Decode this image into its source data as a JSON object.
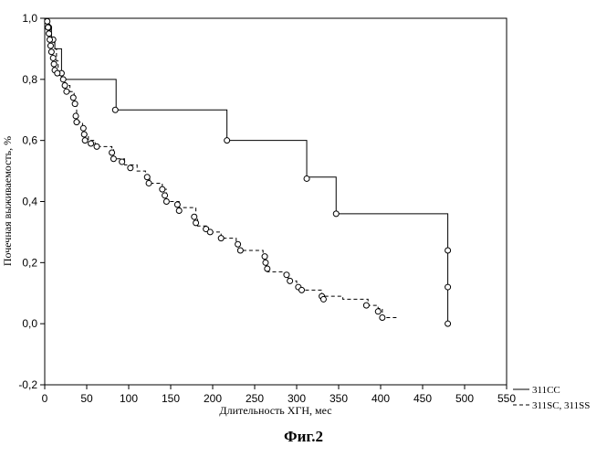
{
  "chart_data": {
    "type": "line",
    "caption": "Фиг.2",
    "xlabel": "Длительность ХГН, мес",
    "ylabel": "Почечная выживаемость, %",
    "xlim": [
      0,
      550
    ],
    "ylim": [
      -0.2,
      1.0
    ],
    "x_ticks": [
      0,
      50,
      100,
      150,
      200,
      250,
      300,
      350,
      400,
      450,
      500,
      550
    ],
    "y_ticks": [
      -0.2,
      0.0,
      0.2,
      0.4,
      0.6,
      0.8,
      1.0
    ],
    "y_tick_labels": [
      "-0,2",
      "0,0",
      "0,2",
      "0,4",
      "0,6",
      "0,8",
      "1,0"
    ],
    "grid": false,
    "legend_position": "bottom-right outside",
    "series": [
      {
        "name": "311CC",
        "style": "solid",
        "steps": [
          [
            2,
            1.0
          ],
          [
            5,
            0.97
          ],
          [
            8,
            0.93
          ],
          [
            12,
            0.9
          ],
          [
            20,
            0.8
          ],
          [
            85,
            0.7
          ],
          [
            217,
            0.6
          ],
          [
            312,
            0.48
          ],
          [
            347,
            0.36
          ],
          [
            480,
            0.24
          ],
          [
            480,
            0.12
          ],
          [
            480,
            0.0
          ]
        ],
        "markers": [
          [
            5,
            0.97
          ],
          [
            10,
            0.93
          ],
          [
            20,
            0.82
          ],
          [
            84,
            0.7
          ],
          [
            217,
            0.6
          ],
          [
            312,
            0.475
          ],
          [
            347,
            0.36
          ],
          [
            480,
            0.24
          ],
          [
            480,
            0.12
          ],
          [
            480,
            0.0
          ]
        ]
      },
      {
        "name": "311SC, 311SS",
        "style": "dashed",
        "steps": [
          [
            2,
            1.0
          ],
          [
            4,
            0.98
          ],
          [
            6,
            0.96
          ],
          [
            8,
            0.94
          ],
          [
            10,
            0.92
          ],
          [
            12,
            0.9
          ],
          [
            14,
            0.86
          ],
          [
            16,
            0.82
          ],
          [
            20,
            0.8
          ],
          [
            25,
            0.78
          ],
          [
            30,
            0.76
          ],
          [
            35,
            0.72
          ],
          [
            38,
            0.66
          ],
          [
            45,
            0.64
          ],
          [
            48,
            0.62
          ],
          [
            52,
            0.6
          ],
          [
            60,
            0.58
          ],
          [
            80,
            0.57
          ],
          [
            82,
            0.54
          ],
          [
            95,
            0.52
          ],
          [
            110,
            0.5
          ],
          [
            120,
            0.48
          ],
          [
            125,
            0.46
          ],
          [
            140,
            0.44
          ],
          [
            145,
            0.4
          ],
          [
            160,
            0.38
          ],
          [
            180,
            0.35
          ],
          [
            182,
            0.32
          ],
          [
            195,
            0.3
          ],
          [
            210,
            0.28
          ],
          [
            228,
            0.26
          ],
          [
            230,
            0.24
          ],
          [
            260,
            0.22
          ],
          [
            262,
            0.19
          ],
          [
            265,
            0.17
          ],
          [
            285,
            0.16
          ],
          [
            290,
            0.14
          ],
          [
            300,
            0.12
          ],
          [
            305,
            0.11
          ],
          [
            330,
            0.09
          ],
          [
            355,
            0.08
          ],
          [
            385,
            0.06
          ],
          [
            397,
            0.05
          ],
          [
            402,
            0.02
          ],
          [
            420,
            0.02
          ]
        ],
        "markers": [
          [
            3,
            0.99
          ],
          [
            4,
            0.97
          ],
          [
            5,
            0.95
          ],
          [
            6,
            0.93
          ],
          [
            7,
            0.91
          ],
          [
            8,
            0.89
          ],
          [
            10,
            0.87
          ],
          [
            11,
            0.85
          ],
          [
            12,
            0.83
          ],
          [
            15,
            0.82
          ],
          [
            22,
            0.8
          ],
          [
            24,
            0.78
          ],
          [
            26,
            0.76
          ],
          [
            34,
            0.74
          ],
          [
            36,
            0.72
          ],
          [
            37,
            0.68
          ],
          [
            38,
            0.66
          ],
          [
            46,
            0.64
          ],
          [
            47,
            0.62
          ],
          [
            48,
            0.6
          ],
          [
            55,
            0.59
          ],
          [
            62,
            0.58
          ],
          [
            80,
            0.56
          ],
          [
            82,
            0.54
          ],
          [
            92,
            0.53
          ],
          [
            102,
            0.51
          ],
          [
            122,
            0.48
          ],
          [
            124,
            0.46
          ],
          [
            140,
            0.44
          ],
          [
            143,
            0.42
          ],
          [
            145,
            0.4
          ],
          [
            158,
            0.39
          ],
          [
            160,
            0.37
          ],
          [
            178,
            0.35
          ],
          [
            180,
            0.33
          ],
          [
            192,
            0.31
          ],
          [
            197,
            0.3
          ],
          [
            210,
            0.28
          ],
          [
            230,
            0.26
          ],
          [
            233,
            0.24
          ],
          [
            262,
            0.22
          ],
          [
            263,
            0.2
          ],
          [
            265,
            0.18
          ],
          [
            288,
            0.16
          ],
          [
            292,
            0.14
          ],
          [
            302,
            0.12
          ],
          [
            306,
            0.11
          ],
          [
            330,
            0.09
          ],
          [
            332,
            0.08
          ],
          [
            383,
            0.06
          ],
          [
            397,
            0.04
          ],
          [
            402,
            0.02
          ]
        ]
      }
    ]
  }
}
